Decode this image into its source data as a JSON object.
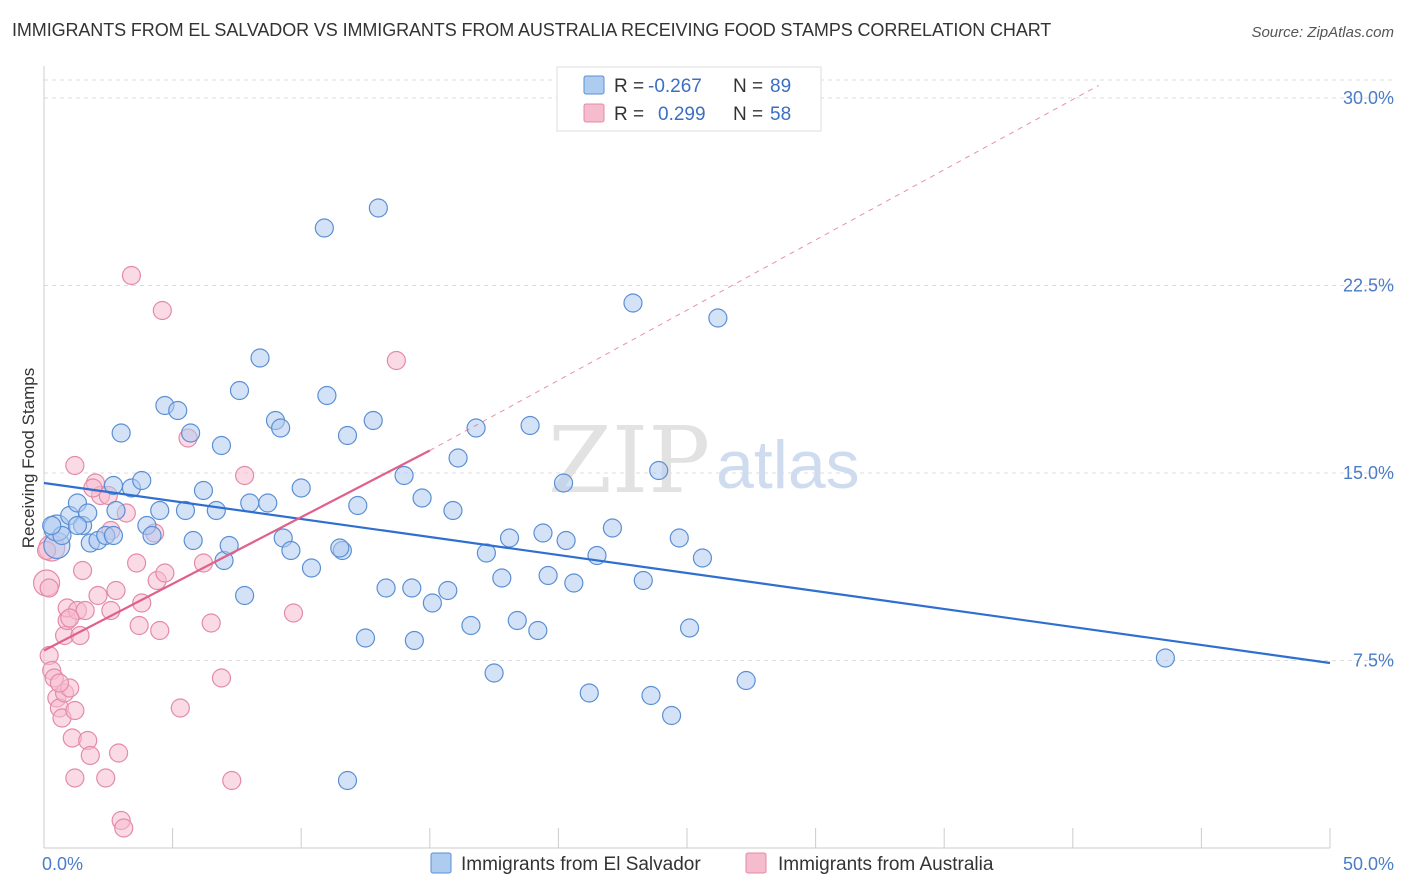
{
  "title": "IMMIGRANTS FROM EL SALVADOR VS IMMIGRANTS FROM AUSTRALIA RECEIVING FOOD STAMPS CORRELATION CHART",
  "source": "Source: ZipAtlas.com",
  "watermark": {
    "zip": "ZIP",
    "atlas": "atlas"
  },
  "colors": {
    "blue_fill": "#aecbf0",
    "blue_stroke": "#5b8fd4",
    "blue_line": "#2f6fd0",
    "pink_fill": "#f5bccd",
    "pink_stroke": "#e48aa8",
    "pink_line": "#e0608a",
    "tick_label": "#4a7cc7",
    "grid": "#dddddd"
  },
  "legend": {
    "rows": [
      {
        "r_label": "R =",
        "r_value": "-0.267",
        "n_label": "N =",
        "n_value": "89"
      },
      {
        "r_label": "R =",
        "r_value": "0.299",
        "n_label": "N =",
        "n_value": "58"
      }
    ]
  },
  "chart_data": {
    "type": "scatter",
    "xlabel": "",
    "ylabel": "Receiving Food Stamps",
    "x_tick_labels": [
      "0.0%",
      "50.0%"
    ],
    "y_tick_labels": [
      "7.5%",
      "15.0%",
      "22.5%",
      "30.0%"
    ],
    "xlim": [
      0,
      50
    ],
    "ylim": [
      0,
      30.8
    ],
    "y_ticks": [
      7.5,
      15.0,
      22.5,
      30.0
    ],
    "grid": true,
    "legend_position": "top-center",
    "series": [
      {
        "name": "Immigrants from El Salvador",
        "r": -0.267,
        "n": 89,
        "trend": {
          "x0": 0,
          "y0": 14.6,
          "x1": 50,
          "y1": 7.4
        },
        "points": [
          [
            0.5,
            12.1
          ],
          [
            0.5,
            12.8
          ],
          [
            0.7,
            12.5
          ],
          [
            1.0,
            13.3
          ],
          [
            1.3,
            13.8
          ],
          [
            1.5,
            12.9
          ],
          [
            1.7,
            13.4
          ],
          [
            1.8,
            12.2
          ],
          [
            2.1,
            12.3
          ],
          [
            2.4,
            12.5
          ],
          [
            2.7,
            14.5
          ],
          [
            2.8,
            13.5
          ],
          [
            3.0,
            16.6
          ],
          [
            3.4,
            14.4
          ],
          [
            3.8,
            14.7
          ],
          [
            4.0,
            12.9
          ],
          [
            4.2,
            12.5
          ],
          [
            4.5,
            13.5
          ],
          [
            4.7,
            17.7
          ],
          [
            5.2,
            17.5
          ],
          [
            5.5,
            13.5
          ],
          [
            5.7,
            16.6
          ],
          [
            5.8,
            12.3
          ],
          [
            6.2,
            14.3
          ],
          [
            6.7,
            13.5
          ],
          [
            6.9,
            16.1
          ],
          [
            7.0,
            11.5
          ],
          [
            7.2,
            12.1
          ],
          [
            7.6,
            18.3
          ],
          [
            7.8,
            10.1
          ],
          [
            8.0,
            13.8
          ],
          [
            8.4,
            19.6
          ],
          [
            8.7,
            13.8
          ],
          [
            9.0,
            17.1
          ],
          [
            9.2,
            16.8
          ],
          [
            9.3,
            12.4
          ],
          [
            9.6,
            11.9
          ],
          [
            10.0,
            14.4
          ],
          [
            10.4,
            11.2
          ],
          [
            10.9,
            24.8
          ],
          [
            11.0,
            18.1
          ],
          [
            11.6,
            11.9
          ],
          [
            11.8,
            16.5
          ],
          [
            12.2,
            13.7
          ],
          [
            12.5,
            8.4
          ],
          [
            12.8,
            17.1
          ],
          [
            13.0,
            25.6
          ],
          [
            13.3,
            10.4
          ],
          [
            14.0,
            14.9
          ],
          [
            14.3,
            10.4
          ],
          [
            14.4,
            8.3
          ],
          [
            14.7,
            14.0
          ],
          [
            15.1,
            9.8
          ],
          [
            15.7,
            10.3
          ],
          [
            15.9,
            13.5
          ],
          [
            16.1,
            15.6
          ],
          [
            16.6,
            8.9
          ],
          [
            16.8,
            16.8
          ],
          [
            17.2,
            11.8
          ],
          [
            17.5,
            7.0
          ],
          [
            17.8,
            10.8
          ],
          [
            18.1,
            12.4
          ],
          [
            18.4,
            9.1
          ],
          [
            18.9,
            16.9
          ],
          [
            19.2,
            8.7
          ],
          [
            19.4,
            12.6
          ],
          [
            19.6,
            10.9
          ],
          [
            20.2,
            14.6
          ],
          [
            20.3,
            12.3
          ],
          [
            20.6,
            10.6
          ],
          [
            21.2,
            6.2
          ],
          [
            21.5,
            11.7
          ],
          [
            22.1,
            12.8
          ],
          [
            22.9,
            21.8
          ],
          [
            23.3,
            10.7
          ],
          [
            23.6,
            6.1
          ],
          [
            23.9,
            15.1
          ],
          [
            24.4,
            5.3
          ],
          [
            24.7,
            12.4
          ],
          [
            25.1,
            8.8
          ],
          [
            25.6,
            11.6
          ],
          [
            26.2,
            21.2
          ],
          [
            27.3,
            6.7
          ],
          [
            11.8,
            2.7
          ],
          [
            43.6,
            7.6
          ],
          [
            0.3,
            12.9
          ],
          [
            1.3,
            12.9
          ],
          [
            2.7,
            12.5
          ],
          [
            11.5,
            12.0
          ]
        ]
      },
      {
        "name": "Immigrants from Australia",
        "r": 0.299,
        "n": 58,
        "trend": {
          "x0": 0,
          "y0": 7.9,
          "x1": 15.0,
          "y1": 15.9
        },
        "trend_extension": {
          "x0": 15.0,
          "y0": 15.9,
          "x1": 41.0,
          "y1": 30.5
        },
        "points": [
          [
            0.1,
            10.6
          ],
          [
            0.3,
            12.0
          ],
          [
            0.2,
            7.7
          ],
          [
            0.3,
            7.1
          ],
          [
            0.4,
            6.8
          ],
          [
            0.5,
            6.0
          ],
          [
            0.6,
            5.6
          ],
          [
            0.7,
            5.2
          ],
          [
            0.8,
            6.2
          ],
          [
            0.8,
            8.5
          ],
          [
            0.9,
            9.1
          ],
          [
            0.9,
            9.6
          ],
          [
            1.0,
            6.4
          ],
          [
            1.1,
            4.4
          ],
          [
            1.2,
            5.5
          ],
          [
            1.2,
            2.8
          ],
          [
            1.3,
            9.5
          ],
          [
            1.4,
            8.5
          ],
          [
            1.5,
            11.1
          ],
          [
            1.6,
            9.5
          ],
          [
            1.7,
            4.3
          ],
          [
            1.8,
            3.7
          ],
          [
            2.0,
            14.6
          ],
          [
            2.1,
            10.1
          ],
          [
            2.2,
            14.1
          ],
          [
            2.4,
            2.8
          ],
          [
            2.6,
            9.5
          ],
          [
            2.6,
            12.7
          ],
          [
            2.8,
            10.3
          ],
          [
            2.9,
            3.8
          ],
          [
            3.0,
            1.1
          ],
          [
            3.1,
            0.8
          ],
          [
            3.2,
            13.4
          ],
          [
            3.6,
            11.4
          ],
          [
            3.7,
            8.9
          ],
          [
            3.8,
            9.8
          ],
          [
            4.3,
            12.6
          ],
          [
            4.4,
            10.7
          ],
          [
            4.5,
            8.7
          ],
          [
            4.6,
            21.5
          ],
          [
            4.7,
            11.0
          ],
          [
            5.3,
            5.6
          ],
          [
            5.6,
            16.4
          ],
          [
            6.2,
            11.4
          ],
          [
            6.5,
            9.0
          ],
          [
            6.9,
            6.8
          ],
          [
            7.3,
            2.7
          ],
          [
            7.8,
            14.9
          ],
          [
            9.7,
            9.4
          ],
          [
            13.7,
            19.5
          ],
          [
            3.4,
            22.9
          ],
          [
            1.2,
            15.3
          ],
          [
            0.6,
            6.6
          ],
          [
            2.5,
            14.1
          ],
          [
            1.9,
            14.4
          ],
          [
            0.1,
            11.9
          ],
          [
            0.2,
            10.4
          ],
          [
            1.0,
            9.2
          ]
        ]
      }
    ]
  }
}
